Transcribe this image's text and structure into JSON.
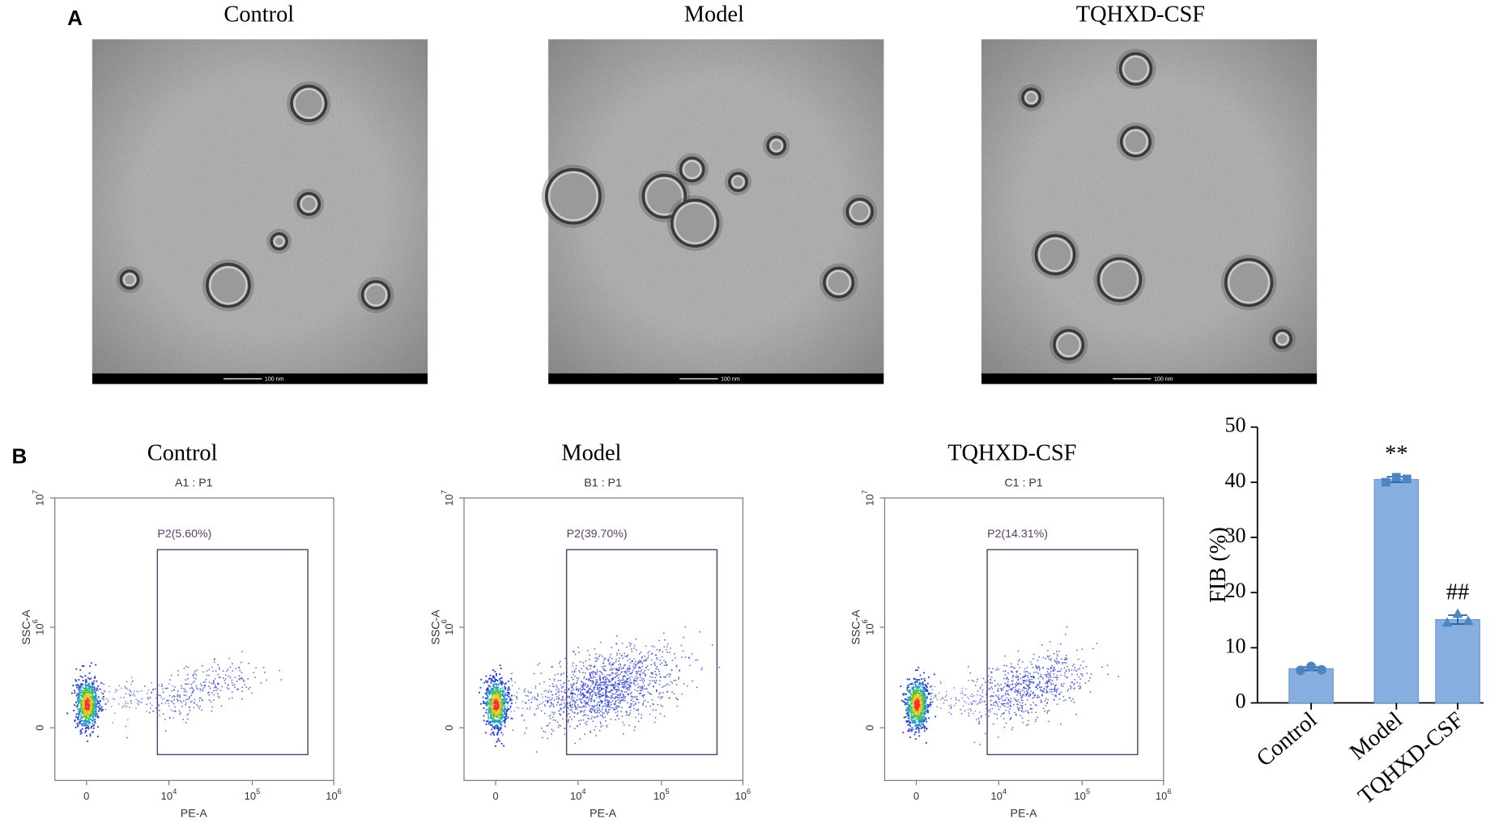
{
  "panel_labels": [
    "A",
    "B"
  ],
  "tem": {
    "titles": [
      "Control",
      "Model",
      "TQHXD-CSF"
    ],
    "scale_bar": "100 nm"
  },
  "flow_cytometry": {
    "plots": [
      {
        "title": "Control",
        "subtitle": "A1 : P1",
        "gate": "P2(5.60%)"
      },
      {
        "title": "Model",
        "subtitle": "B1 : P1",
        "gate": "P2(39.70%)"
      },
      {
        "title": "TQHXD-CSF",
        "subtitle": "C1 : P1",
        "gate": "P2(14.31%)"
      }
    ],
    "xlabel": "PE-A",
    "ylabel": "SSC-A",
    "xticks": [
      {
        "label": "0"
      },
      {
        "base": "10",
        "exponent": "4"
      },
      {
        "base": "10",
        "exponent": "5"
      },
      {
        "base": "10",
        "exponent": "6"
      }
    ],
    "yticks": [
      {
        "label": "0"
      },
      {
        "base": "10",
        "exponent": "6"
      },
      {
        "base": "10",
        "exponent": "7"
      }
    ]
  },
  "chart_data": {
    "type": "bar",
    "ylabel": "FIB (%)",
    "categories": [
      "Control",
      "Model",
      "TQHXD-CSF"
    ],
    "values": [
      6.2,
      40.5,
      15.1
    ],
    "errors": [
      0.3,
      0.5,
      0.8
    ],
    "points": [
      [
        5.9,
        6.6,
        6.0
      ],
      [
        40.0,
        40.9,
        40.6
      ],
      [
        14.5,
        16.1,
        14.8
      ]
    ],
    "annotations": {
      "Model": "**",
      "TQHXD-CSF": "##"
    },
    "color": "#86afdf",
    "point_color": "#4a86c5",
    "ylim": [
      0,
      50
    ],
    "yticks": [
      0,
      10,
      20,
      30,
      40,
      50
    ]
  }
}
